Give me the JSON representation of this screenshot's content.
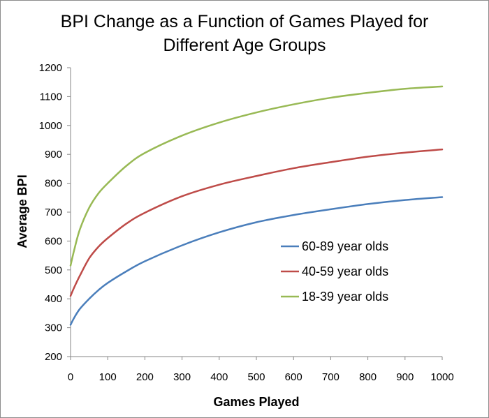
{
  "chart_data": {
    "type": "line",
    "title_line1": "BPI Change as a Function of Games Played for",
    "title_line2": "Different Age Groups",
    "xlabel": "Games Played",
    "ylabel": "Average BPI",
    "xlim": [
      0,
      1000
    ],
    "ylim": [
      200,
      1200
    ],
    "x_ticks": [
      "0",
      "100",
      "200",
      "300",
      "400",
      "500",
      "600",
      "700",
      "800",
      "900",
      "1000"
    ],
    "y_ticks": [
      "200",
      "300",
      "400",
      "500",
      "600",
      "700",
      "800",
      "900",
      "1000",
      "1100",
      "1200"
    ],
    "grid": false,
    "legend_position": "center-right",
    "series": [
      {
        "name": "60-89 year olds",
        "color": "#4a7ebb",
        "x": [
          0,
          10,
          25,
          50,
          75,
          100,
          150,
          200,
          300,
          400,
          500,
          600,
          700,
          800,
          900,
          1000
        ],
        "y": [
          310,
          335,
          365,
          400,
          430,
          455,
          495,
          530,
          585,
          630,
          665,
          690,
          710,
          728,
          742,
          752
        ]
      },
      {
        "name": "40-59 year olds",
        "color": "#be4b48",
        "x": [
          0,
          10,
          25,
          50,
          75,
          100,
          150,
          200,
          300,
          400,
          500,
          600,
          700,
          800,
          900,
          1000
        ],
        "y": [
          410,
          440,
          480,
          540,
          580,
          610,
          660,
          698,
          755,
          795,
          825,
          852,
          873,
          892,
          906,
          917
        ]
      },
      {
        "name": "18-39 year olds",
        "color": "#98b954",
        "x": [
          0,
          10,
          25,
          50,
          75,
          100,
          150,
          200,
          300,
          400,
          500,
          600,
          700,
          800,
          900,
          1000
        ],
        "y": [
          515,
          570,
          640,
          715,
          765,
          800,
          860,
          905,
          965,
          1010,
          1045,
          1073,
          1096,
          1113,
          1127,
          1135
        ]
      }
    ]
  }
}
